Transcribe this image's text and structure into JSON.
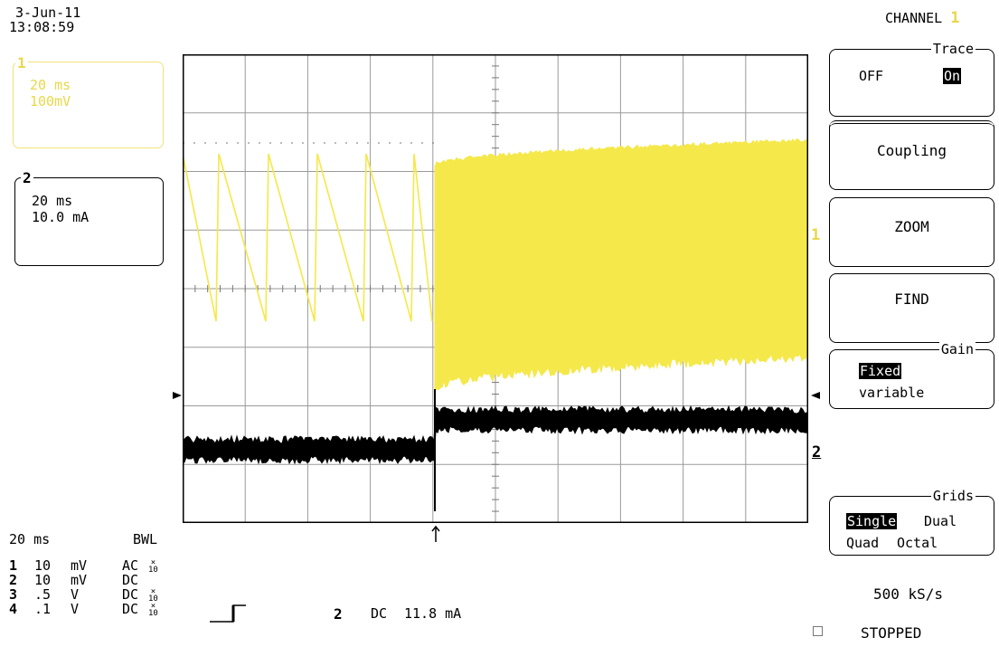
{
  "header": {
    "date": "3-Jun-11",
    "time": "13:08:59",
    "channel_label": "CHANNEL",
    "channel_number": "1"
  },
  "left_panel": {
    "ch1": {
      "number": "1",
      "timebase": "20 ms",
      "scale": "100mV"
    },
    "ch2": {
      "number": "2",
      "timebase": "20 ms",
      "scale": "10.0 mA"
    }
  },
  "right_menu": {
    "trace": {
      "caption": "Trace",
      "off": "OFF",
      "on": "On"
    },
    "coupling": "Coupling",
    "zoom": "ZOOM",
    "find": "FIND",
    "gain": {
      "caption": "Gain",
      "fixed": "Fixed",
      "variable": "variable"
    },
    "grids": {
      "caption": "Grids",
      "single": "Single",
      "dual": "Dual",
      "quad": "Quad",
      "octal": "Octal"
    },
    "sample_rate": "500 kS/s",
    "status": "STOPPED"
  },
  "bottom_panel": {
    "timebase": "20 ms",
    "bwl": "BWL",
    "channels": [
      {
        "num": "1",
        "value": "10",
        "unit": "mV",
        "coupling": "AC",
        "probe": "x10"
      },
      {
        "num": "2",
        "value": "10",
        "unit": "mV",
        "coupling": "DC",
        "probe": ""
      },
      {
        "num": "3",
        "value": ".5",
        "unit": "V",
        "coupling": "DC",
        "probe": "x10"
      },
      {
        "num": "4",
        "value": ".1",
        "unit": "V",
        "coupling": "DC",
        "probe": "x10"
      }
    ],
    "trigger_channel": "2",
    "trigger_coupling": "DC",
    "trigger_level": "11.8 mA"
  },
  "trace_markers": {
    "ch1": "1",
    "ch2": "2"
  },
  "colors": {
    "ch1": "#f5e84a",
    "ch1_box": "#f0e27a",
    "ch2": "#000000",
    "grid": "#9a9a9a"
  }
}
